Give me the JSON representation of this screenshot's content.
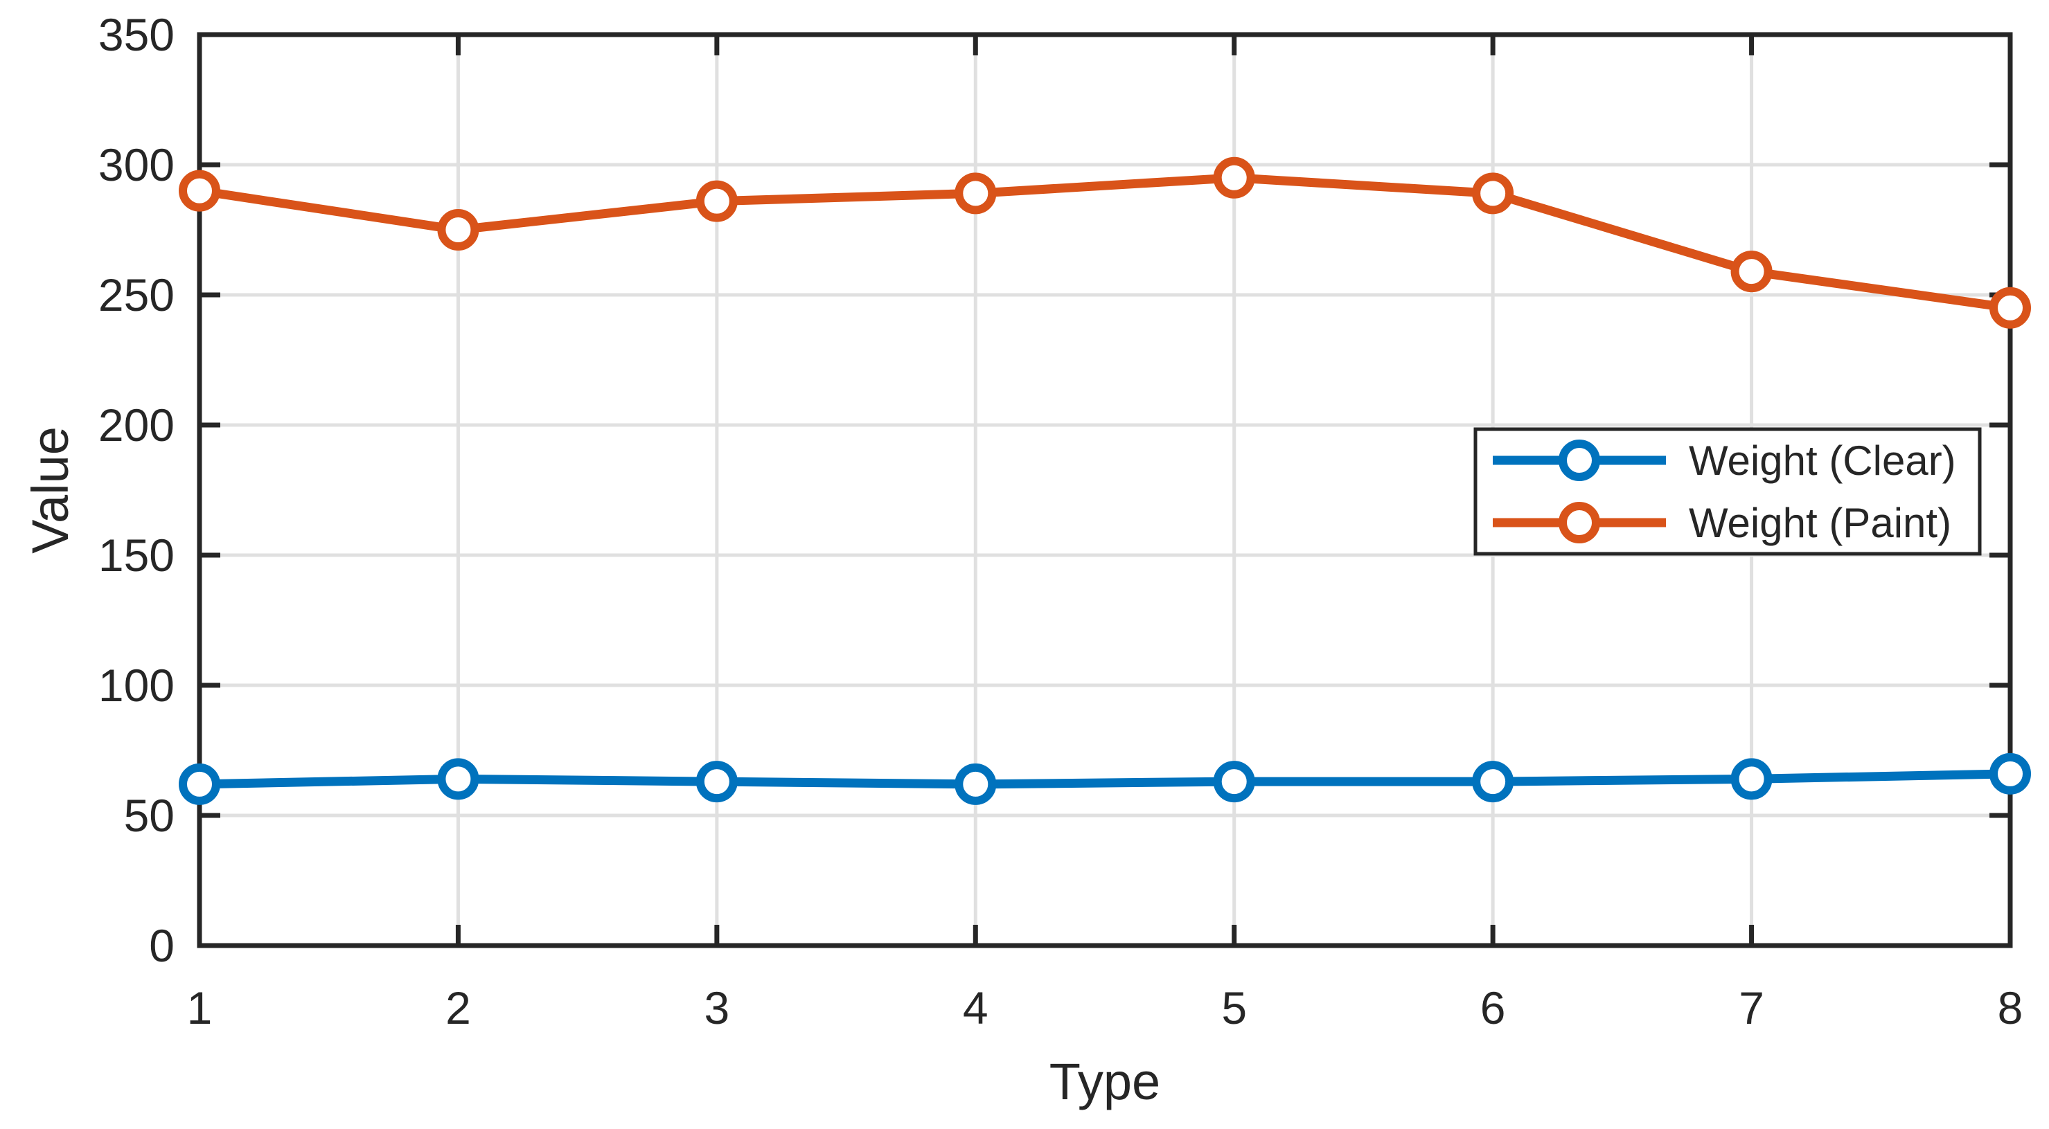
{
  "chart_data": {
    "type": "line",
    "title": "",
    "xlabel": "Type",
    "ylabel": "Value",
    "x": [
      1,
      2,
      3,
      4,
      5,
      6,
      7,
      8
    ],
    "xlim": [
      1,
      8
    ],
    "ylim": [
      0,
      350
    ],
    "xticks": [
      1,
      2,
      3,
      4,
      5,
      6,
      7,
      8
    ],
    "yticks": [
      0,
      50,
      100,
      150,
      200,
      250,
      300,
      350
    ],
    "grid": true,
    "legend_position": "right-center",
    "axis_color": "#262626",
    "grid_color": "#E0E0E0",
    "plot_background": "#ffffff",
    "series": [
      {
        "name": "Weight (Clear)",
        "color": "#0072BD",
        "marker": "circle",
        "values": [
          62,
          64,
          63,
          62,
          63,
          63,
          64,
          66
        ]
      },
      {
        "name": "Weight (Paint)",
        "color": "#D95319",
        "marker": "circle",
        "values": [
          290,
          275,
          286,
          289,
          295,
          289,
          259,
          245
        ]
      }
    ]
  }
}
